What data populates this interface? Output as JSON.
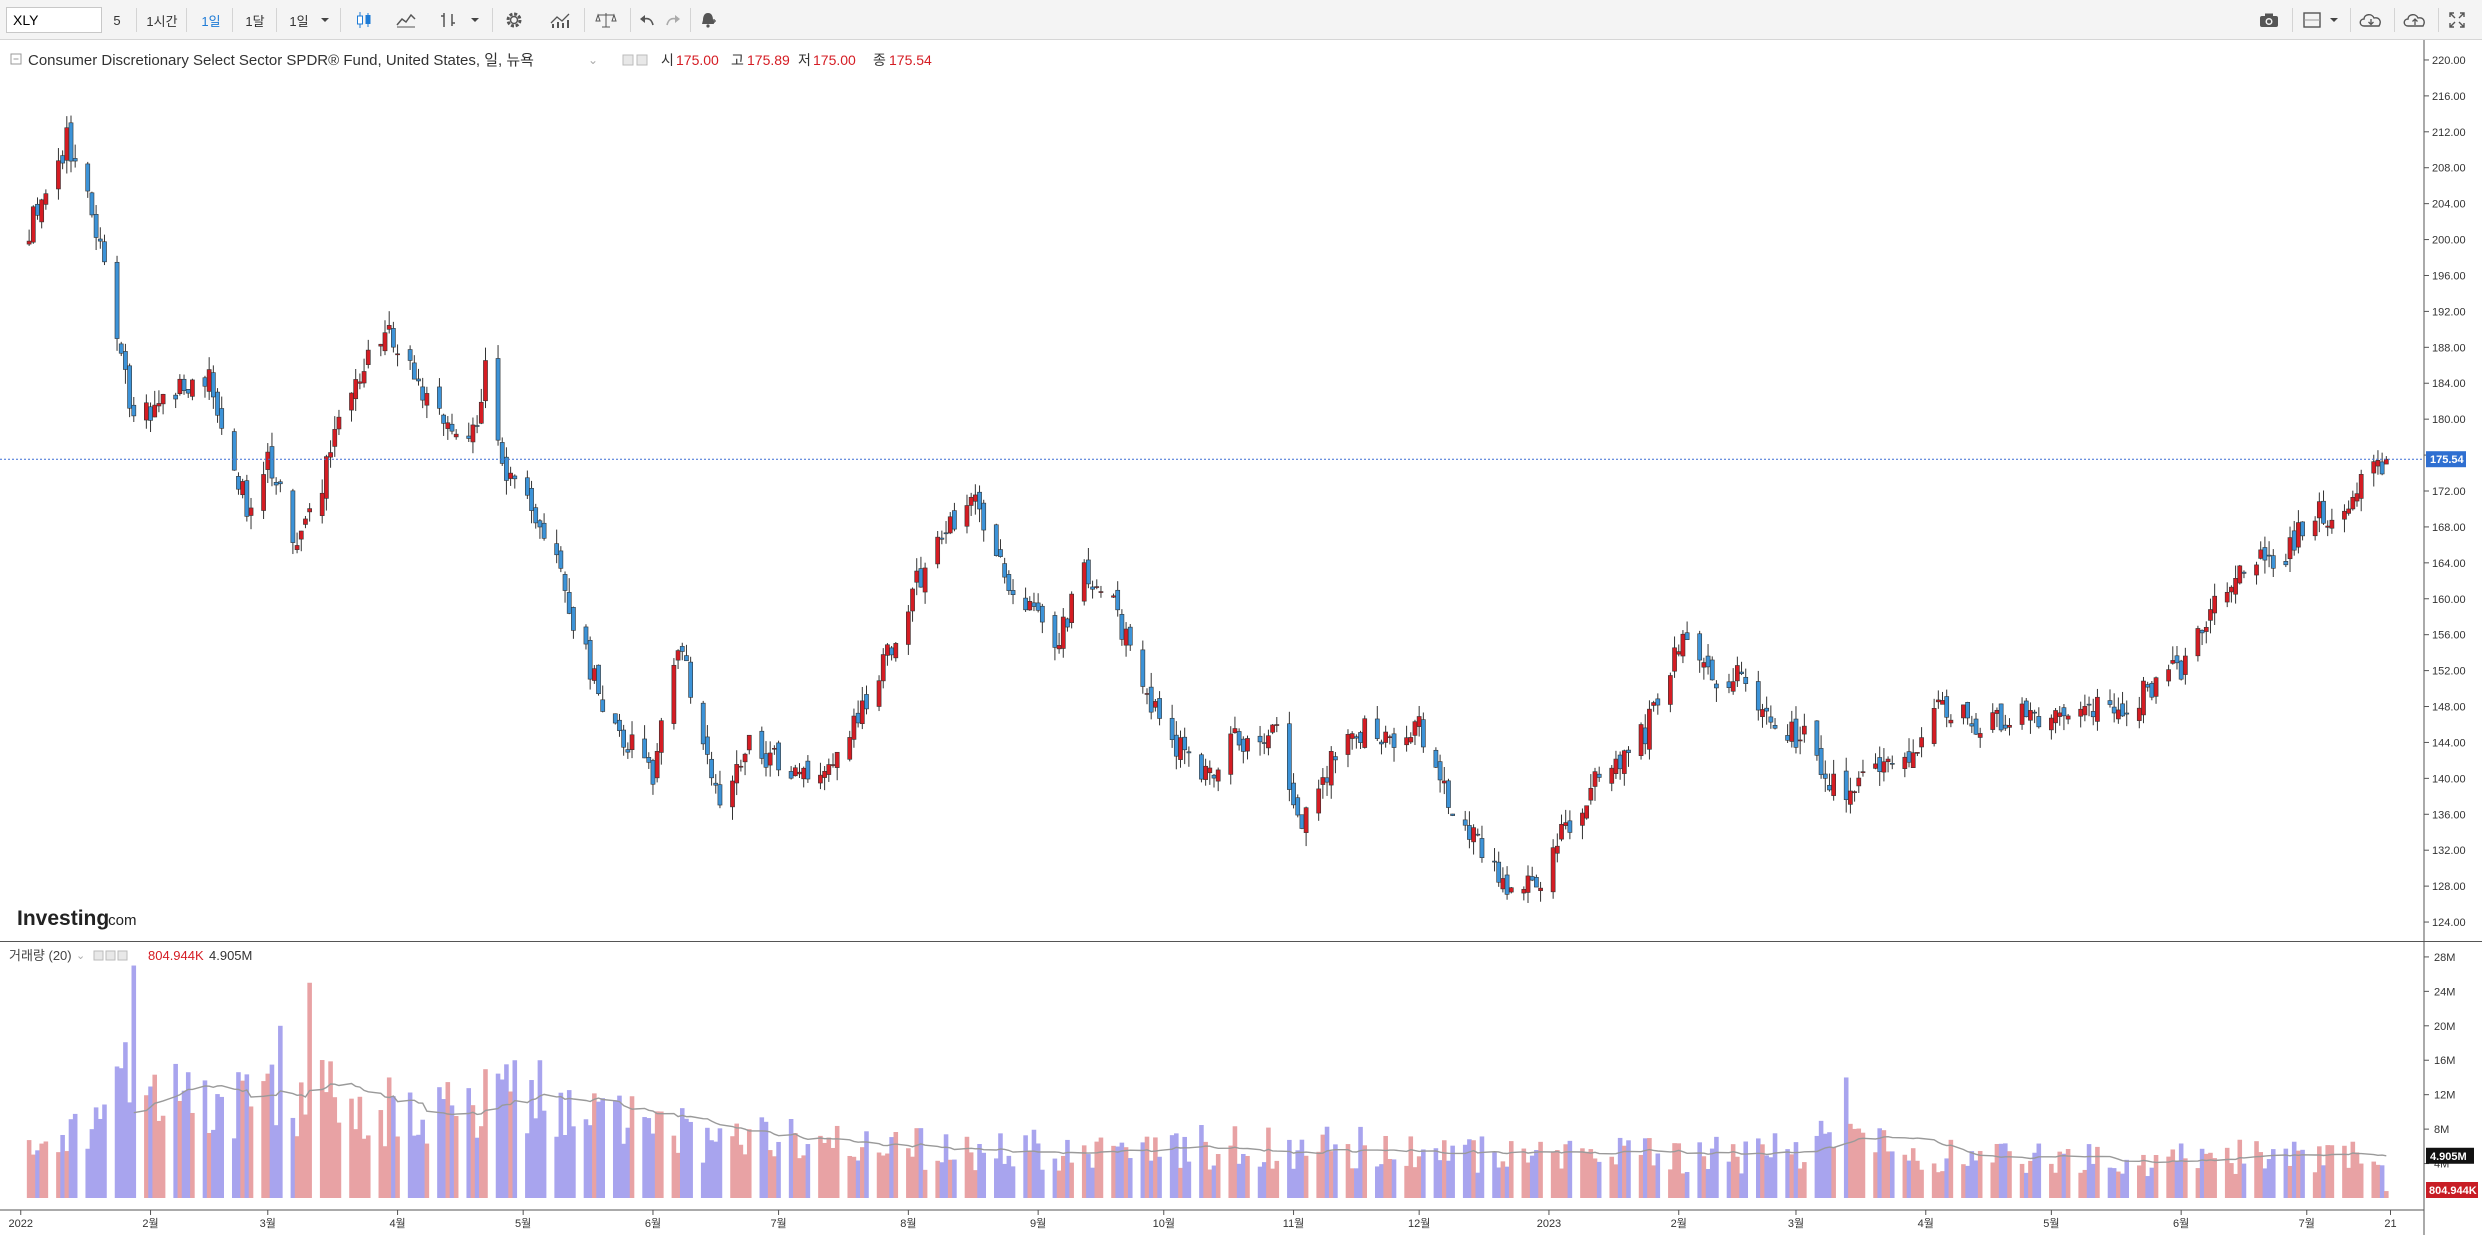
{
  "toolbar": {
    "symbol": "XLY",
    "interval_value": "5",
    "intervals": [
      "1시간",
      "1일",
      "1달",
      "1일"
    ],
    "active_interval_index": 1,
    "icons": [
      "candlestick-icon",
      "line-chart-icon",
      "bar-type-icon",
      "dropdown-icon",
      "settings-gear-icon",
      "indicators-icon",
      "compare-scale-icon",
      "undo-icon",
      "redo-icon",
      "alert-bell-icon",
      "camera-icon",
      "layout-icon",
      "cloud-load-icon",
      "cloud-save-icon",
      "fullscreen-icon"
    ]
  },
  "legend": {
    "title": "Consumer Discretionary Select Sector SPDR® Fund, United States, 일, 뉴욕",
    "open_label": "시",
    "open": "175.00",
    "high_label": "고",
    "high": "175.89",
    "low_label": "저",
    "low": "175.00",
    "close_label": "종",
    "close": "175.54"
  },
  "volume_legend": {
    "name": "거래량 (20)",
    "volume": "804.944K",
    "ma": "4.905M"
  },
  "watermark": {
    "brand": "Investing",
    "suffix": ".com"
  },
  "colors": {
    "up": "#d51c23",
    "down": "#3c93d8",
    "vol_up": "#e8a2a4",
    "vol_down": "#a8a4ee",
    "ma": "#9a9a9a",
    "price_line": "#3c6fd6"
  },
  "chart_data": [
    {
      "type": "candlestick",
      "title": "Consumer Discretionary Select Sector SPDR® Fund, United States, 일, 뉴욕",
      "last_price": 175.54,
      "last_price_label": "175.54",
      "ylim": [
        122,
        222
      ],
      "y_ticks": [
        124,
        128,
        132,
        136,
        140,
        144,
        148,
        152,
        156,
        160,
        164,
        168,
        172,
        176,
        180,
        184,
        188,
        192,
        196,
        200,
        204,
        208,
        212,
        216,
        220
      ],
      "y_tick_labels": [
        "124.00",
        "128.00",
        "132.00",
        "136.00",
        "140.00",
        "144.00",
        "148.00",
        "152.00",
        "156.00",
        "160.00",
        "164.00",
        "168.00",
        "172.00",
        "176.00",
        "180.00",
        "184.00",
        "188.00",
        "192.00",
        "196.00",
        "200.00",
        "204.00",
        "208.00",
        "212.00",
        "216.00",
        "220.00"
      ],
      "x_tick_labels": [
        "2022",
        "2월",
        "3월",
        "4월",
        "5월",
        "6월",
        "7월",
        "8월",
        "9월",
        "10월",
        "11월",
        "12월",
        "2023",
        "2월",
        "3월",
        "4월",
        "5월",
        "6월",
        "7월",
        "21"
      ],
      "x_tick_days": [
        0,
        31,
        59,
        90,
        120,
        151,
        181,
        212,
        243,
        273,
        304,
        334,
        365,
        396,
        424,
        455,
        485,
        516,
        546,
        566
      ],
      "x_range_days": [
        -4,
        574
      ],
      "anchors": [
        {
          "date": "2022-01-01",
          "close": 200
        },
        {
          "date": "2022-01-08",
          "close": 205
        },
        {
          "date": "2022-01-12",
          "close": 211
        },
        {
          "date": "2022-01-20",
          "close": 200
        },
        {
          "date": "2022-01-28",
          "close": 180
        },
        {
          "date": "2022-02-05",
          "close": 182
        },
        {
          "date": "2022-02-15",
          "close": 185
        },
        {
          "date": "2022-02-24",
          "close": 170
        },
        {
          "date": "2022-03-01",
          "close": 176
        },
        {
          "date": "2022-03-08",
          "close": 165
        },
        {
          "date": "2022-03-12",
          "close": 170
        },
        {
          "date": "2022-03-18",
          "close": 180
        },
        {
          "date": "2022-03-29",
          "close": 190
        },
        {
          "date": "2022-04-05",
          "close": 185
        },
        {
          "date": "2022-04-12",
          "close": 180
        },
        {
          "date": "2022-04-19",
          "close": 178
        },
        {
          "date": "2022-04-22",
          "close": 186
        },
        {
          "date": "2022-04-26",
          "close": 175
        },
        {
          "date": "2022-05-02",
          "close": 172
        },
        {
          "date": "2022-05-09",
          "close": 165
        },
        {
          "date": "2022-05-13",
          "close": 158
        },
        {
          "date": "2022-05-20",
          "close": 148
        },
        {
          "date": "2022-06-01",
          "close": 140
        },
        {
          "date": "2022-06-07",
          "close": 155
        },
        {
          "date": "2022-06-13",
          "close": 145
        },
        {
          "date": "2022-06-17",
          "close": 137
        },
        {
          "date": "2022-06-24",
          "close": 144
        },
        {
          "date": "2022-07-05",
          "close": 140
        },
        {
          "date": "2022-07-15",
          "close": 142
        },
        {
          "date": "2022-07-22",
          "close": 148
        },
        {
          "date": "2022-08-01",
          "close": 160
        },
        {
          "date": "2022-08-08",
          "close": 166
        },
        {
          "date": "2022-08-16",
          "close": 172
        },
        {
          "date": "2022-08-22",
          "close": 164
        },
        {
          "date": "2022-09-01",
          "close": 158
        },
        {
          "date": "2022-09-06",
          "close": 155
        },
        {
          "date": "2022-09-12",
          "close": 164
        },
        {
          "date": "2022-09-20",
          "close": 158
        },
        {
          "date": "2022-09-30",
          "close": 146
        },
        {
          "date": "2022-10-10",
          "close": 140
        },
        {
          "date": "2022-10-18",
          "close": 144
        },
        {
          "date": "2022-10-28",
          "close": 146
        },
        {
          "date": "2022-11-03",
          "close": 134
        },
        {
          "date": "2022-11-08",
          "close": 140
        },
        {
          "date": "2022-11-15",
          "close": 146
        },
        {
          "date": "2022-11-25",
          "close": 143
        },
        {
          "date": "2022-12-01",
          "close": 146
        },
        {
          "date": "2022-12-07",
          "close": 139
        },
        {
          "date": "2022-12-16",
          "close": 132
        },
        {
          "date": "2022-12-22",
          "close": 128
        },
        {
          "date": "2022-12-30",
          "close": 129
        },
        {
          "date": "2023-01-06",
          "close": 135
        },
        {
          "date": "2023-01-13",
          "close": 140
        },
        {
          "date": "2023-01-20",
          "close": 142
        },
        {
          "date": "2023-01-27",
          "close": 148
        },
        {
          "date": "2023-02-02",
          "close": 156
        },
        {
          "date": "2023-02-08",
          "close": 151
        },
        {
          "date": "2023-02-16",
          "close": 151
        },
        {
          "date": "2023-02-24",
          "close": 145
        },
        {
          "date": "2023-03-03",
          "close": 145
        },
        {
          "date": "2023-03-13",
          "close": 137
        },
        {
          "date": "2023-03-20",
          "close": 142
        },
        {
          "date": "2023-03-28",
          "close": 143
        },
        {
          "date": "2023-04-05",
          "close": 148
        },
        {
          "date": "2023-04-14",
          "close": 146
        },
        {
          "date": "2023-04-26",
          "close": 147
        },
        {
          "date": "2023-05-04",
          "close": 146
        },
        {
          "date": "2023-05-15",
          "close": 148
        },
        {
          "date": "2023-05-26",
          "close": 150
        },
        {
          "date": "2023-06-02",
          "close": 153
        },
        {
          "date": "2023-06-08",
          "close": 158
        },
        {
          "date": "2023-06-16",
          "close": 164
        },
        {
          "date": "2023-06-26",
          "close": 165
        },
        {
          "date": "2023-07-03",
          "close": 170
        },
        {
          "date": "2023-07-07",
          "close": 169
        },
        {
          "date": "2023-07-14",
          "close": 173
        },
        {
          "date": "2023-07-20",
          "close": 175.54
        }
      ]
    },
    {
      "type": "bar",
      "title": "거래량 (20)",
      "ylim": [
        0,
        29.5
      ],
      "unit": "M",
      "y_ticks": [
        4,
        8,
        12,
        16,
        20,
        24,
        28
      ],
      "y_tick_labels": [
        "4M",
        "8M",
        "12M",
        "16M",
        "20M",
        "24M",
        "28M"
      ],
      "last_volume": 0.804944,
      "last_volume_label": "804.944K",
      "ma_last": 4.905,
      "ma_last_label": "4.905M",
      "volume_level_anchors": [
        {
          "date": "2022-01-01",
          "volume": 5
        },
        {
          "date": "2022-01-20",
          "volume": 8
        },
        {
          "date": "2022-01-28",
          "volume": 14
        },
        {
          "date": "2022-02-15",
          "volume": 10
        },
        {
          "date": "2022-03-01",
          "volume": 12
        },
        {
          "date": "2022-03-15",
          "volume": 12
        },
        {
          "date": "2022-04-05",
          "volume": 9
        },
        {
          "date": "2022-04-25",
          "volume": 11
        },
        {
          "date": "2022-05-15",
          "volume": 9
        },
        {
          "date": "2022-06-15",
          "volume": 7
        },
        {
          "date": "2022-07-15",
          "volume": 6
        },
        {
          "date": "2022-08-15",
          "volume": 5.5
        },
        {
          "date": "2022-09-15",
          "volume": 5.5
        },
        {
          "date": "2022-10-15",
          "volume": 6
        },
        {
          "date": "2022-11-15",
          "volume": 6
        },
        {
          "date": "2022-12-15",
          "volume": 5
        },
        {
          "date": "2023-01-15",
          "volume": 4.8
        },
        {
          "date": "2023-02-15",
          "volume": 5
        },
        {
          "date": "2023-03-15",
          "volume": 7
        },
        {
          "date": "2023-03-25",
          "volume": 5
        },
        {
          "date": "2023-04-15",
          "volume": 4.5
        },
        {
          "date": "2023-05-15",
          "volume": 4.3
        },
        {
          "date": "2023-06-15",
          "volume": 4.8
        },
        {
          "date": "2023-07-15",
          "volume": 4.8
        }
      ],
      "spikes": [
        {
          "date": "2022-01-28",
          "volume": 27
        },
        {
          "date": "2022-03-04",
          "volume": 20
        },
        {
          "date": "2022-03-11",
          "volume": 25
        },
        {
          "date": "2022-04-29",
          "volume": 16
        },
        {
          "date": "2022-05-05",
          "volume": 16
        },
        {
          "date": "2023-03-13",
          "volume": 14
        }
      ]
    }
  ]
}
